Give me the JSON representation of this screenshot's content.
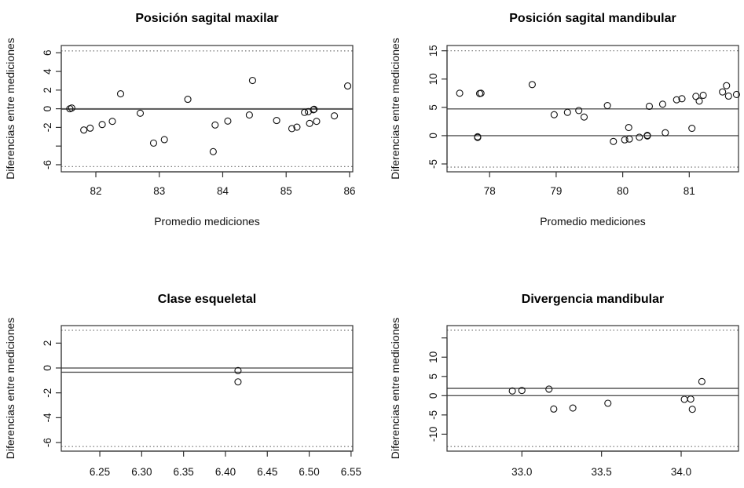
{
  "chart_data": [
    {
      "type": "scatter",
      "title": "Posición sagital maxilar",
      "xlabel": "Promedio mediciones",
      "ylabel": "Diferencias entre mediciones",
      "xlim": [
        81.455,
        86.05
      ],
      "ylim": [
        -6.76,
        6.78
      ],
      "xticks": [
        82,
        83,
        84,
        85,
        86
      ],
      "xtick_labels": [
        "82",
        "83",
        "84",
        "85",
        "86"
      ],
      "yticks": [
        6,
        4,
        2,
        0,
        -2,
        -4,
        -6
      ],
      "ytick_labels": [
        "6",
        "4",
        "2",
        "0",
        "-2",
        "",
        "-6"
      ],
      "grid": false,
      "hlines": {
        "zero": 0,
        "mean": -0.05,
        "upper_limit": 6.2,
        "lower_limit": -6.2
      },
      "x": [
        81.59,
        81.62,
        81.81,
        81.91,
        82.1,
        82.26,
        82.39,
        82.7,
        82.91,
        83.08,
        83.45,
        83.85,
        83.88,
        84.08,
        84.42,
        84.47,
        84.85,
        85.09,
        85.17,
        85.29,
        85.35,
        85.37,
        85.43,
        85.44,
        85.48,
        85.76,
        85.97
      ],
      "y": [
        0.0,
        0.08,
        -2.28,
        -2.08,
        -1.69,
        -1.35,
        1.6,
        -0.48,
        -3.68,
        -3.31,
        1.01,
        -4.6,
        -1.74,
        -1.32,
        -0.67,
        3.03,
        -1.26,
        -2.13,
        -1.97,
        -0.39,
        -0.31,
        -1.57,
        -0.11,
        -0.06,
        -1.35,
        -0.76,
        2.44
      ]
    },
    {
      "type": "scatter",
      "title": "Posición sagital mandibular",
      "xlabel": "Promedio mediciones",
      "ylabel": "Diferencias entre mediciones",
      "xlim": [
        77.36,
        81.74
      ],
      "ylim": [
        -6.39,
        15.93
      ],
      "xticks": [
        78,
        79,
        80,
        81
      ],
      "xtick_labels": [
        "78",
        "79",
        "80",
        "81"
      ],
      "yticks": [
        15,
        10,
        5,
        0,
        -5
      ],
      "ytick_labels": [
        "15",
        "10",
        "5",
        "0",
        "-5"
      ],
      "grid": false,
      "hlines": {
        "zero": 0,
        "mean": 4.72,
        "upper_limit": 15.0,
        "lower_limit": -5.56
      },
      "x": [
        77.55,
        77.82,
        77.82,
        77.85,
        77.87,
        78.64,
        78.97,
        79.17,
        79.34,
        79.42,
        79.77,
        79.86,
        80.03,
        80.09,
        80.1,
        80.25,
        80.37,
        80.37,
        80.4,
        80.6,
        80.64,
        80.81,
        80.89,
        81.04,
        81.1,
        81.15,
        81.21,
        81.5,
        81.56,
        81.59,
        81.71
      ],
      "y": [
        7.5,
        -0.32,
        -0.2,
        7.45,
        7.5,
        9.03,
        3.7,
        4.12,
        4.44,
        3.29,
        5.32,
        -1.02,
        -0.74,
        1.44,
        -0.6,
        -0.28,
        0.05,
        -0.05,
        5.19,
        5.56,
        0.51,
        6.34,
        6.53,
        1.3,
        6.94,
        6.11,
        7.13,
        7.73,
        8.84,
        6.99,
        7.27
      ]
    },
    {
      "type": "scatter",
      "title": "Clase esqueletal",
      "xlabel": "",
      "ylabel": "Diferencias entre mediciones",
      "xlim": [
        6.204,
        6.552
      ],
      "ylim": [
        -6.69,
        3.41
      ],
      "xticks": [
        6.25,
        6.3,
        6.35,
        6.4,
        6.45,
        6.5,
        6.55
      ],
      "xtick_labels": [
        "6.25",
        "6.30",
        "6.35",
        "6.40",
        "6.45",
        "6.50",
        "6.55"
      ],
      "yticks": [
        2,
        0,
        -2,
        -4,
        -6
      ],
      "ytick_labels": [
        "2",
        "0",
        "-2",
        "-4",
        "-6"
      ],
      "grid": false,
      "hlines": {
        "zero": 0,
        "mean": -0.34,
        "upper_limit": 3.03,
        "lower_limit": -6.32
      },
      "x": [
        6.415,
        6.415
      ],
      "y": [
        -0.21,
        -1.12
      ]
    },
    {
      "type": "scatter",
      "title": "Divergencia mandibular",
      "xlabel": "",
      "ylabel": "Diferencias entre mediciones",
      "xlim": [
        32.53,
        34.36
      ],
      "ylim": [
        -14.4,
        18.2
      ],
      "xticks": [
        33.0,
        33.5,
        34.0
      ],
      "xtick_labels": [
        "33.0",
        "33.5",
        "34.0"
      ],
      "yticks": [
        15,
        10,
        5,
        0,
        -5,
        -10
      ],
      "ytick_labels": [
        "",
        "10",
        "5",
        "0",
        "-5",
        "-10"
      ],
      "grid": false,
      "hlines": {
        "zero": 0,
        "mean": 1.9,
        "upper_limit": 17.0,
        "lower_limit": -13.2
      },
      "x": [
        32.94,
        33.0,
        33.17,
        33.2,
        33.32,
        33.54,
        34.02,
        34.06,
        34.07,
        34.13
      ],
      "y": [
        1.22,
        1.36,
        1.7,
        -3.47,
        -3.2,
        -1.97,
        -0.95,
        -0.88,
        -3.54,
        3.67
      ]
    }
  ]
}
